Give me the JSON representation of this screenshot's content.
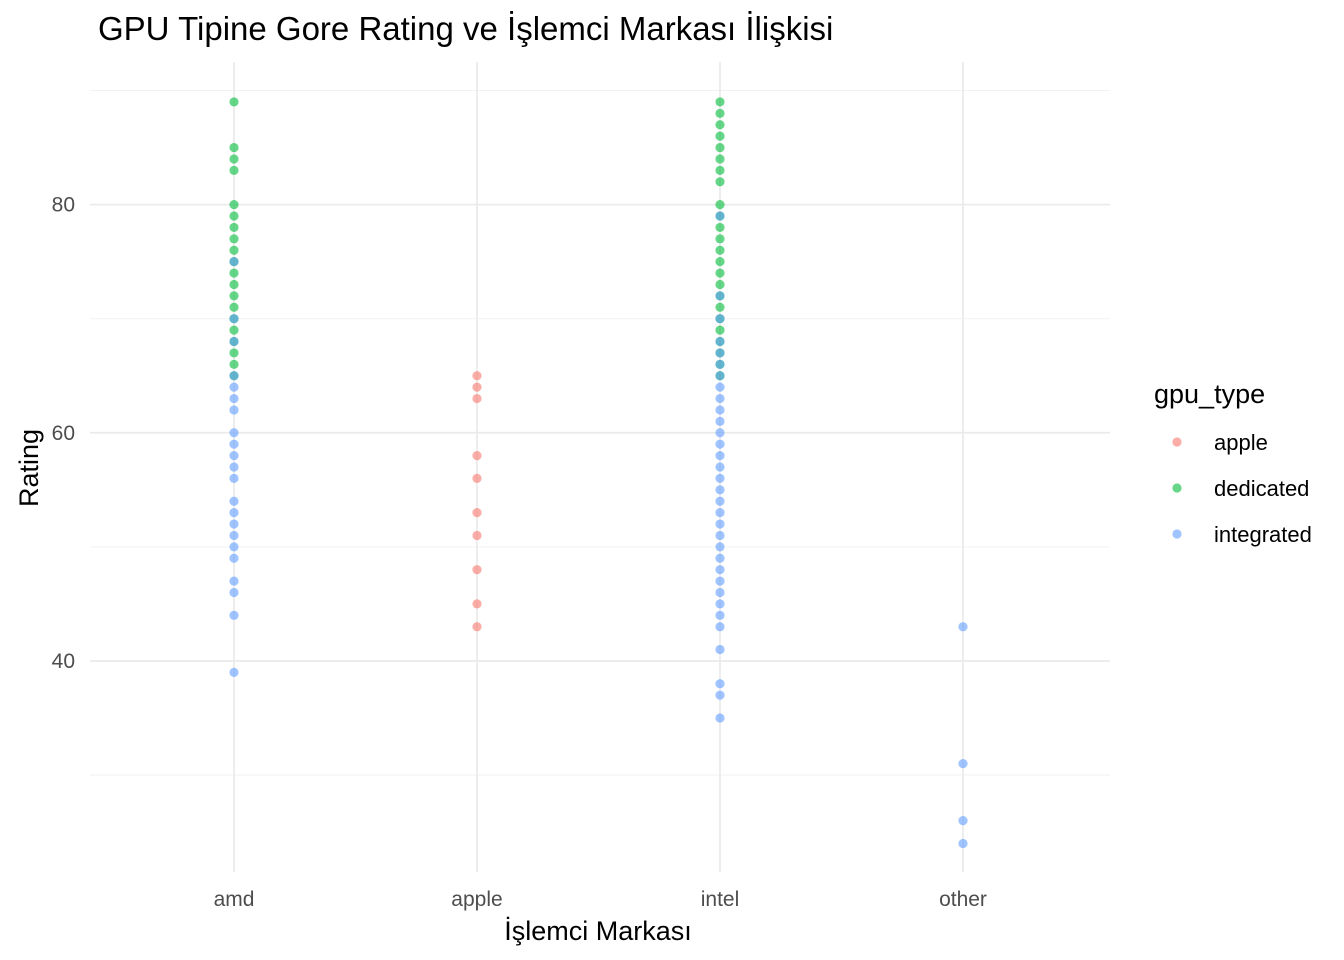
{
  "chart_data": {
    "type": "scatter",
    "title": "GPU Tipine Gore Rating ve İşlemci Markası İlişkisi",
    "xlabel": "İşlemci Markası",
    "ylabel": "Rating",
    "categories": [
      "amd",
      "apple",
      "intel",
      "other"
    ],
    "ylim": [
      21.5,
      92.5
    ],
    "y_ticks": [
      40,
      60,
      80
    ],
    "grid": true,
    "legend": {
      "title": "gpu_type",
      "position": "right"
    },
    "series": [
      {
        "name": "apple",
        "color": "#F8766D",
        "points": [
          {
            "x": "apple",
            "y": 65
          },
          {
            "x": "apple",
            "y": 64
          },
          {
            "x": "apple",
            "y": 63
          },
          {
            "x": "apple",
            "y": 58
          },
          {
            "x": "apple",
            "y": 56
          },
          {
            "x": "apple",
            "y": 53
          },
          {
            "x": "apple",
            "y": 51
          },
          {
            "x": "apple",
            "y": 48
          },
          {
            "x": "apple",
            "y": 45
          },
          {
            "x": "apple",
            "y": 43
          }
        ]
      },
      {
        "name": "dedicated",
        "color": "#00BA38",
        "points": [
          {
            "x": "amd",
            "y": 89
          },
          {
            "x": "amd",
            "y": 85
          },
          {
            "x": "amd",
            "y": 84
          },
          {
            "x": "amd",
            "y": 83
          },
          {
            "x": "amd",
            "y": 80
          },
          {
            "x": "amd",
            "y": 79
          },
          {
            "x": "amd",
            "y": 78
          },
          {
            "x": "amd",
            "y": 77
          },
          {
            "x": "amd",
            "y": 76
          },
          {
            "x": "amd",
            "y": 75
          },
          {
            "x": "amd",
            "y": 74
          },
          {
            "x": "amd",
            "y": 73
          },
          {
            "x": "amd",
            "y": 72
          },
          {
            "x": "amd",
            "y": 71
          },
          {
            "x": "amd",
            "y": 70
          },
          {
            "x": "amd",
            "y": 69
          },
          {
            "x": "amd",
            "y": 68
          },
          {
            "x": "amd",
            "y": 67
          },
          {
            "x": "amd",
            "y": 66
          },
          {
            "x": "amd",
            "y": 65
          },
          {
            "x": "intel",
            "y": 89
          },
          {
            "x": "intel",
            "y": 88
          },
          {
            "x": "intel",
            "y": 87
          },
          {
            "x": "intel",
            "y": 86
          },
          {
            "x": "intel",
            "y": 85
          },
          {
            "x": "intel",
            "y": 84
          },
          {
            "x": "intel",
            "y": 83
          },
          {
            "x": "intel",
            "y": 82
          },
          {
            "x": "intel",
            "y": 80
          },
          {
            "x": "intel",
            "y": 79
          },
          {
            "x": "intel",
            "y": 78
          },
          {
            "x": "intel",
            "y": 77
          },
          {
            "x": "intel",
            "y": 76
          },
          {
            "x": "intel",
            "y": 75
          },
          {
            "x": "intel",
            "y": 74
          },
          {
            "x": "intel",
            "y": 73
          },
          {
            "x": "intel",
            "y": 72
          },
          {
            "x": "intel",
            "y": 71
          },
          {
            "x": "intel",
            "y": 70
          },
          {
            "x": "intel",
            "y": 69
          },
          {
            "x": "intel",
            "y": 68
          },
          {
            "x": "intel",
            "y": 67
          },
          {
            "x": "intel",
            "y": 66
          },
          {
            "x": "intel",
            "y": 65
          }
        ]
      },
      {
        "name": "integrated",
        "color": "#619CFF",
        "points": [
          {
            "x": "amd",
            "y": 75
          },
          {
            "x": "amd",
            "y": 70
          },
          {
            "x": "amd",
            "y": 68
          },
          {
            "x": "amd",
            "y": 65
          },
          {
            "x": "amd",
            "y": 64
          },
          {
            "x": "amd",
            "y": 63
          },
          {
            "x": "amd",
            "y": 62
          },
          {
            "x": "amd",
            "y": 60
          },
          {
            "x": "amd",
            "y": 59
          },
          {
            "x": "amd",
            "y": 58
          },
          {
            "x": "amd",
            "y": 57
          },
          {
            "x": "amd",
            "y": 56
          },
          {
            "x": "amd",
            "y": 54
          },
          {
            "x": "amd",
            "y": 53
          },
          {
            "x": "amd",
            "y": 52
          },
          {
            "x": "amd",
            "y": 51
          },
          {
            "x": "amd",
            "y": 50
          },
          {
            "x": "amd",
            "y": 49
          },
          {
            "x": "amd",
            "y": 47
          },
          {
            "x": "amd",
            "y": 46
          },
          {
            "x": "amd",
            "y": 44
          },
          {
            "x": "amd",
            "y": 39
          },
          {
            "x": "intel",
            "y": 79
          },
          {
            "x": "intel",
            "y": 72
          },
          {
            "x": "intel",
            "y": 70
          },
          {
            "x": "intel",
            "y": 68
          },
          {
            "x": "intel",
            "y": 67
          },
          {
            "x": "intel",
            "y": 66
          },
          {
            "x": "intel",
            "y": 65
          },
          {
            "x": "intel",
            "y": 64
          },
          {
            "x": "intel",
            "y": 63
          },
          {
            "x": "intel",
            "y": 62
          },
          {
            "x": "intel",
            "y": 61
          },
          {
            "x": "intel",
            "y": 60
          },
          {
            "x": "intel",
            "y": 59
          },
          {
            "x": "intel",
            "y": 58
          },
          {
            "x": "intel",
            "y": 57
          },
          {
            "x": "intel",
            "y": 56
          },
          {
            "x": "intel",
            "y": 55
          },
          {
            "x": "intel",
            "y": 54
          },
          {
            "x": "intel",
            "y": 53
          },
          {
            "x": "intel",
            "y": 52
          },
          {
            "x": "intel",
            "y": 51
          },
          {
            "x": "intel",
            "y": 50
          },
          {
            "x": "intel",
            "y": 49
          },
          {
            "x": "intel",
            "y": 48
          },
          {
            "x": "intel",
            "y": 47
          },
          {
            "x": "intel",
            "y": 46
          },
          {
            "x": "intel",
            "y": 45
          },
          {
            "x": "intel",
            "y": 44
          },
          {
            "x": "intel",
            "y": 43
          },
          {
            "x": "intel",
            "y": 41
          },
          {
            "x": "intel",
            "y": 38
          },
          {
            "x": "intel",
            "y": 37
          },
          {
            "x": "intel",
            "y": 35
          },
          {
            "x": "other",
            "y": 43
          },
          {
            "x": "other",
            "y": 31
          },
          {
            "x": "other",
            "y": 26
          },
          {
            "x": "other",
            "y": 24
          }
        ]
      }
    ]
  }
}
